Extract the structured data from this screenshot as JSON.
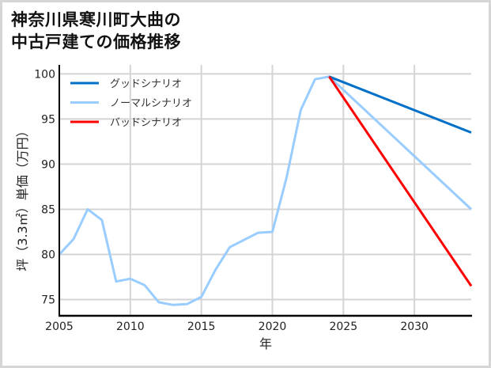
{
  "title": {
    "line1": "神奈川県寒川町大曲の",
    "line2": "中古戸建ての価格推移"
  },
  "chart_data": {
    "type": "line",
    "title": "神奈川県寒川町大曲の中古戸建ての価格推移",
    "xlabel": "年",
    "ylabel": "坪（3.3㎡）単価（万円）",
    "xlim": [
      2005,
      2034
    ],
    "ylim": [
      73.2,
      101.0
    ],
    "xticks": [
      2005,
      2010,
      2015,
      2020,
      2025,
      2030
    ],
    "yticks": [
      75,
      80,
      85,
      90,
      95,
      100
    ],
    "grid": true,
    "legend_position": "upper left",
    "series": [
      {
        "name": "グッドシナリオ",
        "color": "#0070c8",
        "x": [
          2024,
          2034
        ],
        "values": [
          99.7,
          93.5
        ]
      },
      {
        "name": "ノーマルシナリオ",
        "color": "#99ccff",
        "x": [
          2005,
          2006,
          2007,
          2008,
          2009,
          2010,
          2011,
          2012,
          2013,
          2014,
          2015,
          2016,
          2017,
          2018,
          2019,
          2020,
          2021,
          2022,
          2023,
          2024,
          2034
        ],
        "values": [
          80.0,
          81.7,
          85.0,
          83.8,
          77.0,
          77.3,
          76.6,
          74.7,
          74.4,
          74.5,
          75.3,
          78.3,
          80.8,
          81.6,
          82.4,
          82.5,
          88.5,
          96.0,
          99.4,
          99.7,
          85.0
        ]
      },
      {
        "name": "バッドシナリオ",
        "color": "#ff0000",
        "x": [
          2024,
          2034
        ],
        "values": [
          99.7,
          76.5
        ]
      }
    ]
  }
}
